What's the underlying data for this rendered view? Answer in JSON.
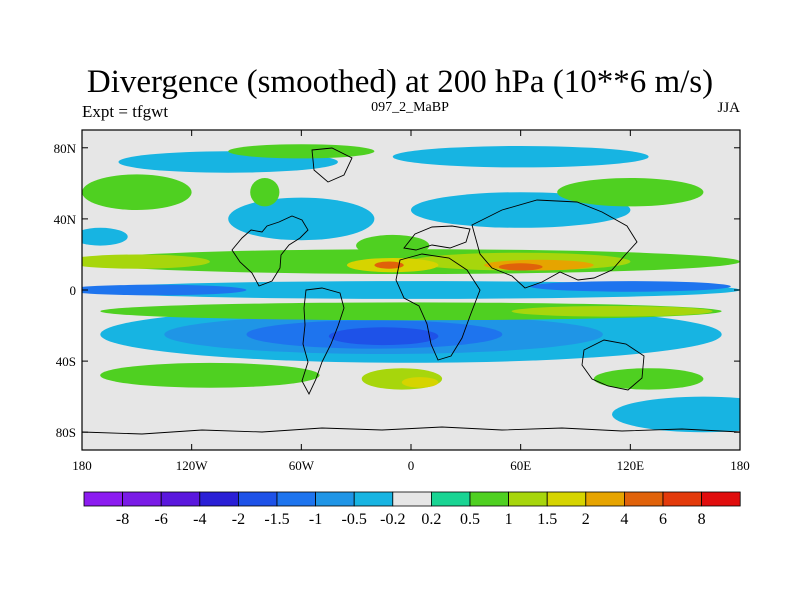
{
  "chart_data": {
    "type": "heatmap",
    "title": "Divergence (smoothed) at 200 hPa (10**6 m/s)",
    "subtitle": "097_2_MaBP",
    "left_string": "Expt = tfgwt",
    "right_string": "JJA",
    "xlim": [
      -180,
      180
    ],
    "ylim": [
      -90,
      90
    ],
    "x_ticks": [
      {
        "value": -180,
        "label": "180"
      },
      {
        "value": -120,
        "label": "120W"
      },
      {
        "value": -60,
        "label": "60W"
      },
      {
        "value": 0,
        "label": "0"
      },
      {
        "value": 60,
        "label": "60E"
      },
      {
        "value": 120,
        "label": "120E"
      },
      {
        "value": 180,
        "label": "180"
      }
    ],
    "y_ticks": [
      {
        "value": 80,
        "label": "80N"
      },
      {
        "value": 40,
        "label": "40N"
      },
      {
        "value": 0,
        "label": "0"
      },
      {
        "value": -40,
        "label": "40S"
      },
      {
        "value": -80,
        "label": "80S"
      }
    ],
    "colorbar": {
      "colors": [
        "#8c1cf0",
        "#7a1be6",
        "#5a17dd",
        "#2a1fd6",
        "#1e52e8",
        "#1e74ee",
        "#1f95e6",
        "#17b4e2",
        "#e6e6e6",
        "#19d493",
        "#4fd021",
        "#a7d60c",
        "#d6d400",
        "#e6a400",
        "#e0620a",
        "#e33a0b",
        "#e00d0d"
      ],
      "labels": [
        "-8",
        "-6",
        "-4",
        "-2",
        "-1.5",
        "-1",
        "-0.5",
        "-0.2",
        "0.2",
        "0.5",
        "1",
        "1.5",
        "2",
        "4",
        "6",
        "8"
      ]
    },
    "regions": [
      {
        "level": -0.5,
        "cx": 0,
        "cy": -25,
        "rx": 170,
        "ry": 16
      },
      {
        "level": -1,
        "cx": -15,
        "cy": -25,
        "rx": 120,
        "ry": 11
      },
      {
        "level": -1.5,
        "cx": -20,
        "cy": -25,
        "rx": 70,
        "ry": 8
      },
      {
        "level": -2,
        "cx": -15,
        "cy": -26,
        "rx": 30,
        "ry": 5
      },
      {
        "level": -0.5,
        "cx": 0,
        "cy": 0,
        "rx": 180,
        "ry": 5
      },
      {
        "level": -1.5,
        "cx": -140,
        "cy": 0,
        "rx": 50,
        "ry": 3
      },
      {
        "level": -1.5,
        "cx": 120,
        "cy": 2,
        "rx": 55,
        "ry": 3
      },
      {
        "level": 0.5,
        "cx": 0,
        "cy": 16,
        "rx": 180,
        "ry": 7
      },
      {
        "level": 1,
        "cx": -150,
        "cy": 16,
        "rx": 40,
        "ry": 4
      },
      {
        "level": 1,
        "cx": 60,
        "cy": 16,
        "rx": 60,
        "ry": 5
      },
      {
        "level": 1.5,
        "cx": -10,
        "cy": 14,
        "rx": 25,
        "ry": 4
      },
      {
        "level": 2,
        "cx": 70,
        "cy": 14,
        "rx": 30,
        "ry": 3
      },
      {
        "level": 4,
        "cx": -12,
        "cy": 14,
        "rx": 8,
        "ry": 2
      },
      {
        "level": 4,
        "cx": 60,
        "cy": 13,
        "rx": 12,
        "ry": 2
      },
      {
        "level": 0.5,
        "cx": 0,
        "cy": -12,
        "rx": 170,
        "ry": 5
      },
      {
        "level": 1,
        "cx": 110,
        "cy": -12,
        "rx": 55,
        "ry": 3
      },
      {
        "level": 0.5,
        "cx": -110,
        "cy": -48,
        "rx": 60,
        "ry": 7
      },
      {
        "level": 1,
        "cx": -5,
        "cy": -50,
        "rx": 22,
        "ry": 6
      },
      {
        "level": 1.5,
        "cx": 5,
        "cy": -52,
        "rx": 10,
        "ry": 3
      },
      {
        "level": 0.5,
        "cx": 130,
        "cy": -50,
        "rx": 30,
        "ry": 6
      },
      {
        "level": -0.5,
        "cx": 160,
        "cy": -70,
        "rx": 50,
        "ry": 10
      },
      {
        "level": 0.5,
        "cx": -150,
        "cy": 55,
        "rx": 30,
        "ry": 10
      },
      {
        "level": -0.5,
        "cx": -60,
        "cy": 40,
        "rx": 40,
        "ry": 12
      },
      {
        "level": -0.5,
        "cx": 60,
        "cy": 45,
        "rx": 60,
        "ry": 10
      },
      {
        "level": 0.5,
        "cx": 120,
        "cy": 55,
        "rx": 40,
        "ry": 8
      },
      {
        "level": -0.5,
        "cx": -100,
        "cy": 72,
        "rx": 60,
        "ry": 6
      },
      {
        "level": -0.5,
        "cx": 60,
        "cy": 75,
        "rx": 70,
        "ry": 6
      },
      {
        "level": 0.5,
        "cx": -60,
        "cy": 78,
        "rx": 40,
        "ry": 4
      },
      {
        "level": -0.5,
        "cx": -170,
        "cy": 30,
        "rx": 15,
        "ry": 5
      },
      {
        "level": 0.5,
        "cx": -80,
        "cy": 55,
        "rx": 8,
        "ry": 8
      },
      {
        "level": 0.5,
        "cx": -10,
        "cy": 25,
        "rx": 20,
        "ry": 6
      }
    ]
  }
}
